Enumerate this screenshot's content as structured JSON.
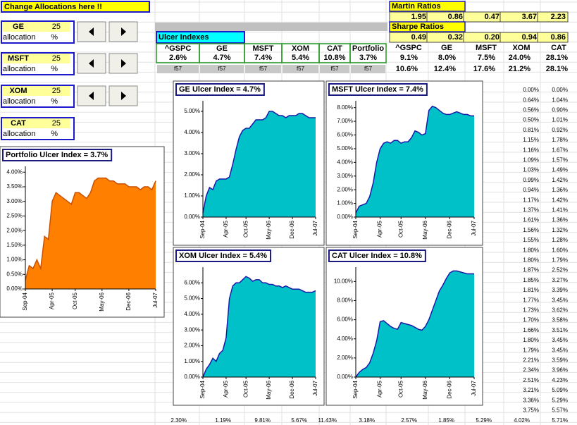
{
  "header": {
    "title": "Change Allocations here !!"
  },
  "allocations": [
    {
      "name": "GE",
      "value": "25",
      "label": "allocation",
      "unit": "%"
    },
    {
      "name": "MSFT",
      "value": "25",
      "label": "allocation",
      "unit": "%"
    },
    {
      "name": "XOM",
      "value": "25",
      "label": "allocation",
      "unit": "%"
    },
    {
      "name": "CAT",
      "value": "25",
      "label": "allocation",
      "unit": "%"
    }
  ],
  "ulcer_table": {
    "title": "Ulcer Indexes",
    "columns": [
      "^GSPC",
      "GE",
      "MSFT",
      "XOM",
      "CAT",
      "Portfolio"
    ],
    "values": [
      "2.6%",
      "4.7%",
      "7.4%",
      "5.4%",
      "10.8%",
      "3.7%"
    ],
    "footer": [
      "f57",
      "f57",
      "f57",
      "f57",
      "f57",
      "f57"
    ]
  },
  "martin": {
    "title": "Martin Ratios",
    "values": [
      "1.95",
      "0.86",
      "0.47",
      "3.67",
      "2.23"
    ]
  },
  "sharpe": {
    "title": "Sharpe Ratios",
    "values": [
      "0.49",
      "0.32",
      "0.20",
      "0.94",
      "0.86"
    ]
  },
  "returns": {
    "columns": [
      "^GSPC",
      "GE",
      "MSFT",
      "XOM",
      "CAT"
    ],
    "rows": [
      [
        "9.1%",
        "8.0%",
        "7.5%",
        "24.0%",
        "28.1%"
      ],
      [
        "10.6%",
        "12.4%",
        "17.6%",
        "21.2%",
        "28.1%"
      ]
    ]
  },
  "right_columns": {
    "rows": [
      [
        "0.00%",
        "0.00%"
      ],
      [
        "0.64%",
        "1.04%"
      ],
      [
        "0.56%",
        "0.90%"
      ],
      [
        "0.50%",
        "1.01%"
      ],
      [
        "0.81%",
        "0.92%"
      ],
      [
        "1.15%",
        "1.78%"
      ],
      [
        "1.16%",
        "1.67%"
      ],
      [
        "1.09%",
        "1.57%"
      ],
      [
        "1.03%",
        "1.49%"
      ],
      [
        "0.99%",
        "1.42%"
      ],
      [
        "0.94%",
        "1.36%"
      ],
      [
        "1.17%",
        "1.42%"
      ],
      [
        "1.37%",
        "1.41%"
      ],
      [
        "1.61%",
        "1.36%"
      ],
      [
        "1.56%",
        "1.32%"
      ],
      [
        "1.55%",
        "1.28%"
      ],
      [
        "1.80%",
        "1.60%"
      ],
      [
        "1.80%",
        "1.79%"
      ],
      [
        "1.87%",
        "2.52%"
      ],
      [
        "1.85%",
        "3.27%"
      ],
      [
        "1.81%",
        "3.39%"
      ],
      [
        "1.77%",
        "3.45%"
      ],
      [
        "1.73%",
        "3.62%"
      ],
      [
        "1.70%",
        "3.58%"
      ],
      [
        "1.66%",
        "3.51%"
      ],
      [
        "1.80%",
        "3.45%"
      ],
      [
        "1.79%",
        "3.45%"
      ],
      [
        "2.21%",
        "3.59%"
      ],
      [
        "2.34%",
        "3.96%"
      ],
      [
        "2.51%",
        "4.23%"
      ],
      [
        "3.21%",
        "5.09%"
      ],
      [
        "3.36%",
        "5.29%"
      ],
      [
        "3.75%",
        "5.57%"
      ]
    ]
  },
  "bottom_row": [
    "2.30%",
    "1.19%",
    "9.81%",
    "5.67%",
    "11.43%",
    "3.18%",
    "2.57%",
    "1.85%",
    "5.29%",
    "4.02%",
    "5.71%"
  ],
  "chart_data": [
    {
      "type": "area",
      "title": "Portfolio Ulcer Index = 3.7%",
      "color": "#ff8000",
      "line_color": "#c85000",
      "categories": [
        "Sep-04",
        null,
        null,
        null,
        null,
        null,
        null,
        "Apr-05",
        null,
        null,
        null,
        null,
        null,
        "Oct-05",
        null,
        null,
        null,
        null,
        null,
        null,
        "May-06",
        null,
        null,
        null,
        null,
        null,
        null,
        "Dec-06",
        null,
        null,
        null,
        null,
        null,
        null,
        "Jul-07"
      ],
      "values": [
        0.3,
        0.8,
        0.7,
        1.0,
        0.7,
        1.8,
        1.7,
        3.0,
        3.3,
        3.2,
        3.1,
        3.0,
        2.9,
        3.3,
        3.3,
        3.2,
        3.1,
        3.3,
        3.7,
        3.8,
        3.8,
        3.8,
        3.7,
        3.7,
        3.6,
        3.6,
        3.6,
        3.5,
        3.5,
        3.5,
        3.4,
        3.5,
        3.5,
        3.4,
        3.7
      ],
      "ylim": [
        0,
        4.2
      ],
      "yticks": [
        {
          "value": 0,
          "label": "0.00%"
        },
        {
          "value": 0.5,
          "label": "0.50%"
        },
        {
          "value": 1,
          "label": "1.00%"
        },
        {
          "value": 1.5,
          "label": "1.50%"
        },
        {
          "value": 2,
          "label": "2.00%"
        },
        {
          "value": 2.5,
          "label": "2.50%"
        },
        {
          "value": 3,
          "label": "3.00%"
        },
        {
          "value": 3.5,
          "label": "3.50%"
        },
        {
          "value": 4,
          "label": "4.00%"
        }
      ]
    },
    {
      "type": "area",
      "title": "GE Ulcer Index = 4.7%",
      "color": "#00c0c8",
      "line_color": "#1a1aa8",
      "categories": [
        "Sep-04",
        null,
        null,
        null,
        null,
        null,
        null,
        "Apr-05",
        null,
        null,
        null,
        null,
        null,
        "Oct-05",
        null,
        null,
        null,
        null,
        null,
        null,
        "May-06",
        null,
        null,
        null,
        null,
        null,
        null,
        "Dec-06",
        null,
        null,
        null,
        null,
        null,
        null,
        "Jul-07"
      ],
      "values": [
        0.2,
        1.0,
        1.4,
        1.3,
        1.7,
        1.8,
        1.8,
        1.8,
        1.9,
        2.5,
        3.2,
        3.8,
        4.1,
        4.2,
        4.2,
        4.4,
        4.6,
        4.6,
        4.6,
        4.7,
        5.0,
        5.0,
        4.9,
        4.8,
        4.8,
        4.7,
        4.8,
        4.8,
        4.8,
        4.9,
        4.9,
        4.8,
        4.7,
        4.7,
        4.7
      ],
      "ylim": [
        0,
        5.5
      ],
      "yticks": [
        {
          "value": 0,
          "label": "0.00%"
        },
        {
          "value": 1,
          "label": "1.00%"
        },
        {
          "value": 2,
          "label": "2.00%"
        },
        {
          "value": 3,
          "label": "3.00%"
        },
        {
          "value": 4,
          "label": "4.00%"
        },
        {
          "value": 5,
          "label": "5.00%"
        }
      ]
    },
    {
      "type": "area",
      "title": "MSFT Ulcer Index = 7.4%",
      "color": "#00c0c8",
      "line_color": "#1a1aa8",
      "categories": [
        "Sep-04",
        null,
        null,
        null,
        null,
        null,
        null,
        "Apr-05",
        null,
        null,
        null,
        null,
        null,
        "Oct-05",
        null,
        null,
        null,
        null,
        null,
        null,
        "May-06",
        null,
        null,
        null,
        null,
        null,
        null,
        "Dec-06",
        null,
        null,
        null,
        null,
        null,
        null,
        "Jul-07"
      ],
      "values": [
        0.3,
        0.8,
        0.9,
        1.0,
        1.5,
        2.5,
        4.0,
        5.0,
        5.4,
        5.5,
        5.4,
        5.6,
        5.6,
        5.4,
        5.5,
        5.5,
        5.8,
        6.3,
        6.2,
        6.0,
        6.1,
        7.8,
        8.1,
        8.0,
        7.8,
        7.6,
        7.5,
        7.5,
        7.6,
        7.7,
        7.6,
        7.5,
        7.5,
        7.4,
        7.4
      ],
      "ylim": [
        0,
        8.5
      ],
      "yticks": [
        {
          "value": 0,
          "label": "0.00%"
        },
        {
          "value": 1,
          "label": "1.00%"
        },
        {
          "value": 2,
          "label": "2.00%"
        },
        {
          "value": 3,
          "label": "3.00%"
        },
        {
          "value": 4,
          "label": "4.00%"
        },
        {
          "value": 5,
          "label": "5.00%"
        },
        {
          "value": 6,
          "label": "6.00%"
        },
        {
          "value": 7,
          "label": "7.00%"
        },
        {
          "value": 8,
          "label": "8.00%"
        }
      ]
    },
    {
      "type": "area",
      "title": "XOM Ulcer Index = 5.4%",
      "color": "#00c0c8",
      "line_color": "#1a1aa8",
      "categories": [
        "Sep-04",
        null,
        null,
        null,
        null,
        null,
        null,
        "Apr-05",
        null,
        null,
        null,
        null,
        null,
        "Oct-05",
        null,
        null,
        null,
        null,
        null,
        null,
        "May-06",
        null,
        null,
        null,
        null,
        null,
        null,
        "Dec-06",
        null,
        null,
        null,
        null,
        null,
        null,
        "Jul-07"
      ],
      "values": [
        0.0,
        0.5,
        0.8,
        1.2,
        1.0,
        1.5,
        1.7,
        2.5,
        5.0,
        5.8,
        6.0,
        6.0,
        6.2,
        6.4,
        6.3,
        6.1,
        6.2,
        6.2,
        6.0,
        6.0,
        5.9,
        5.9,
        5.8,
        5.8,
        5.7,
        5.8,
        5.7,
        5.6,
        5.6,
        5.6,
        5.5,
        5.4,
        5.4,
        5.4,
        5.5
      ],
      "ylim": [
        0,
        7
      ],
      "yticks": [
        {
          "value": 0,
          "label": "0.00%"
        },
        {
          "value": 1,
          "label": "1.00%"
        },
        {
          "value": 2,
          "label": "2.00%"
        },
        {
          "value": 3,
          "label": "3.00%"
        },
        {
          "value": 4,
          "label": "4.00%"
        },
        {
          "value": 5,
          "label": "5.00%"
        },
        {
          "value": 6,
          "label": "6.00%"
        }
      ]
    },
    {
      "type": "area",
      "title": "CAT Ulcer Index = 10.8%",
      "color": "#00c0c8",
      "line_color": "#1a1aa8",
      "categories": [
        "Sep-04",
        null,
        null,
        null,
        null,
        null,
        null,
        "Apr-05",
        null,
        null,
        null,
        null,
        null,
        "Oct-05",
        null,
        null,
        null,
        null,
        null,
        null,
        "May-06",
        null,
        null,
        null,
        null,
        null,
        null,
        "Dec-06",
        null,
        null,
        null,
        null,
        null,
        null,
        "Jul-07"
      ],
      "values": [
        0.0,
        0.5,
        0.8,
        1.0,
        1.5,
        2.5,
        3.8,
        5.8,
        5.9,
        5.6,
        5.3,
        5.1,
        5.0,
        5.7,
        5.6,
        5.5,
        5.4,
        5.2,
        5.0,
        4.9,
        5.3,
        6.0,
        7.0,
        8.0,
        9.0,
        9.6,
        10.3,
        10.9,
        11.1,
        11.1,
        11.0,
        10.9,
        10.8,
        10.8,
        10.8
      ],
      "ylim": [
        0,
        11.5
      ],
      "yticks": [
        {
          "value": 0,
          "label": "0.00%"
        },
        {
          "value": 2,
          "label": "2.00%"
        },
        {
          "value": 4,
          "label": "4.00%"
        },
        {
          "value": 6,
          "label": "6.00%"
        },
        {
          "value": 8,
          "label": "8.00%"
        },
        {
          "value": 10,
          "label": "10.00%"
        }
      ]
    }
  ]
}
